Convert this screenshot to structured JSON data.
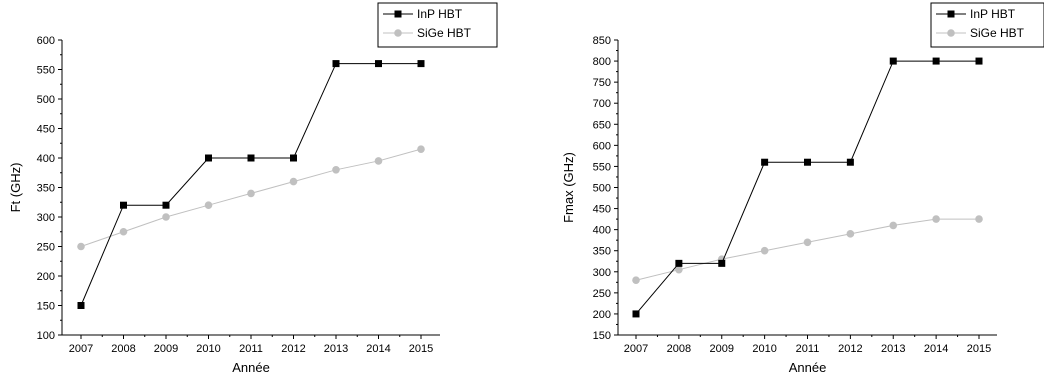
{
  "chart_data": [
    {
      "type": "line",
      "x": [
        2007,
        2008,
        2009,
        2010,
        2011,
        2012,
        2013,
        2014,
        2015
      ],
      "xlabel": "Année",
      "ylabel": "Ft (GHz)",
      "ylim": [
        100,
        600
      ],
      "ytick_step": 50,
      "legend": "top-right",
      "grid": false,
      "series": [
        {
          "name": "InP HBT",
          "color": "#000000",
          "marker": "square",
          "values": [
            150,
            320,
            320,
            400,
            400,
            400,
            560,
            560,
            560
          ]
        },
        {
          "name": "SiGe HBT",
          "color": "#c0c0c0",
          "marker": "circle",
          "values": [
            250,
            275,
            300,
            320,
            340,
            360,
            380,
            395,
            415
          ]
        }
      ]
    },
    {
      "type": "line",
      "x": [
        2007,
        2008,
        2009,
        2010,
        2011,
        2012,
        2013,
        2014,
        2015
      ],
      "xlabel": "Année",
      "ylabel": "Fmax (GHz)",
      "ylim": [
        150,
        850
      ],
      "ytick_step": 50,
      "legend": "top-right",
      "grid": false,
      "series": [
        {
          "name": "InP HBT",
          "color": "#000000",
          "marker": "square",
          "values": [
            200,
            320,
            320,
            560,
            560,
            560,
            800,
            800,
            800
          ]
        },
        {
          "name": "SiGe HBT",
          "color": "#c0c0c0",
          "marker": "circle",
          "values": [
            280,
            305,
            330,
            350,
            370,
            390,
            410,
            425,
            425
          ]
        }
      ]
    }
  ]
}
